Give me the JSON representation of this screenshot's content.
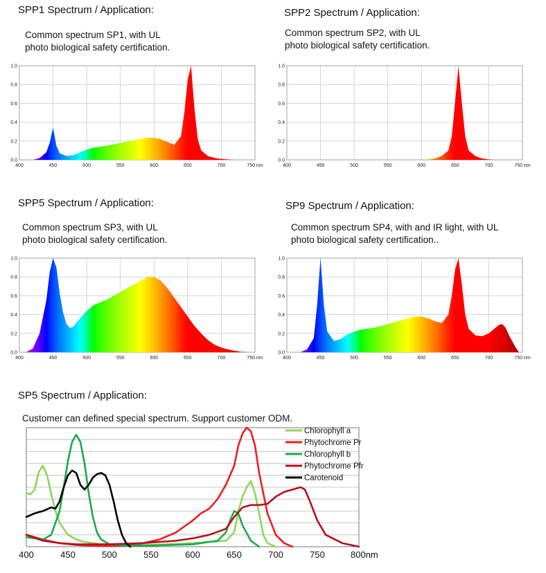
{
  "panels": [
    {
      "heading": "SPP1 Spectrum / Application:",
      "desc": [
        "Common spectrum SP1, with UL",
        "photo biological safety certification."
      ]
    },
    {
      "heading": "SPP2 Spectrum / Application:",
      "desc": [
        "Common spectrum SP2, with UL",
        "photo biological safety certification."
      ]
    },
    {
      "heading": "SPP5 Spectrum / Application:",
      "desc": [
        "Common spectrum SP3, with UL",
        "photo biological safety certification."
      ]
    },
    {
      "heading": "SP9 Spectrum / Application:",
      "desc": [
        "Common spectrum SP4, with and IR light, with UL",
        "photo biological safety certification.."
      ]
    },
    {
      "heading": "SP5 Spectrum / Application:",
      "desc": [
        "Customer can defined special spectrum. Support customer ODM."
      ]
    }
  ],
  "chart_data": [
    {
      "type": "area",
      "xlim": [
        400,
        750
      ],
      "ylim": [
        0,
        1.0
      ],
      "x_ticks": [
        "400",
        "450",
        "500",
        "550",
        "600",
        "650",
        "700",
        "750 nm"
      ],
      "y_ticks": [
        "0.0",
        "0.2",
        "0.4",
        "0.6",
        "0.8",
        "1.0"
      ],
      "grid": true,
      "x": [
        420,
        430,
        440,
        445,
        450,
        455,
        460,
        470,
        480,
        490,
        500,
        510,
        520,
        530,
        540,
        550,
        560,
        570,
        580,
        590,
        600,
        610,
        620,
        630,
        640,
        645,
        650,
        655,
        660,
        665,
        670,
        680,
        690,
        700,
        710,
        720,
        740
      ],
      "values": [
        0.0,
        0.02,
        0.08,
        0.18,
        0.34,
        0.15,
        0.07,
        0.04,
        0.05,
        0.08,
        0.11,
        0.13,
        0.14,
        0.15,
        0.165,
        0.18,
        0.195,
        0.21,
        0.225,
        0.235,
        0.235,
        0.22,
        0.19,
        0.16,
        0.25,
        0.5,
        0.85,
        1.0,
        0.55,
        0.22,
        0.1,
        0.04,
        0.02,
        0.01,
        0.005,
        0.0,
        0.0
      ]
    },
    {
      "type": "area",
      "xlim": [
        400,
        750
      ],
      "ylim": [
        0,
        1.0
      ],
      "x_ticks": [
        "400",
        "450",
        "500",
        "550",
        "600",
        "650",
        "700",
        "750 nm"
      ],
      "y_ticks": [
        "0.0",
        "0.2",
        "0.4",
        "0.6",
        "0.8",
        "1.0"
      ],
      "grid": true,
      "x": [
        600,
        610,
        620,
        630,
        640,
        645,
        650,
        655,
        660,
        665,
        670,
        680,
        690,
        700,
        710
      ],
      "values": [
        0.0,
        0.005,
        0.015,
        0.04,
        0.1,
        0.25,
        0.62,
        1.0,
        0.6,
        0.25,
        0.1,
        0.04,
        0.015,
        0.005,
        0.0
      ]
    },
    {
      "type": "area",
      "xlim": [
        400,
        750
      ],
      "ylim": [
        0,
        1.0
      ],
      "x_ticks": [
        "400",
        "450",
        "500",
        "550",
        "600",
        "650",
        "700",
        "750 nm"
      ],
      "y_ticks": [
        "0.0",
        "0.2",
        "0.4",
        "0.6",
        "0.8",
        "1.0"
      ],
      "grid": true,
      "x": [
        410,
        420,
        430,
        440,
        445,
        450,
        455,
        460,
        465,
        470,
        475,
        480,
        490,
        500,
        510,
        520,
        530,
        540,
        550,
        560,
        570,
        580,
        590,
        600,
        610,
        620,
        630,
        640,
        650,
        660,
        670,
        680,
        690,
        700,
        710,
        720,
        730,
        740
      ],
      "values": [
        0.0,
        0.04,
        0.2,
        0.55,
        0.85,
        1.0,
        0.9,
        0.62,
        0.42,
        0.3,
        0.26,
        0.27,
        0.36,
        0.44,
        0.5,
        0.53,
        0.56,
        0.6,
        0.64,
        0.68,
        0.72,
        0.76,
        0.8,
        0.8,
        0.76,
        0.68,
        0.58,
        0.48,
        0.38,
        0.28,
        0.2,
        0.13,
        0.08,
        0.05,
        0.03,
        0.015,
        0.005,
        0.0
      ]
    },
    {
      "type": "area",
      "xlim": [
        400,
        750
      ],
      "ylim": [
        0,
        1.0
      ],
      "x_ticks": [
        "400",
        "450",
        "500",
        "550",
        "600",
        "650",
        "700",
        "750 nm"
      ],
      "y_ticks": [
        "0.0",
        "0.2",
        "0.4",
        "0.6",
        "0.8",
        "1.0"
      ],
      "grid": true,
      "x": [
        420,
        430,
        440,
        445,
        450,
        455,
        460,
        470,
        480,
        490,
        500,
        510,
        520,
        530,
        540,
        550,
        560,
        570,
        580,
        590,
        600,
        610,
        620,
        630,
        640,
        645,
        650,
        655,
        660,
        665,
        670,
        680,
        690,
        700,
        710,
        715,
        720,
        725,
        730,
        740,
        745
      ],
      "values": [
        0.0,
        0.03,
        0.15,
        0.5,
        1.0,
        0.5,
        0.22,
        0.12,
        0.14,
        0.19,
        0.22,
        0.24,
        0.25,
        0.26,
        0.28,
        0.3,
        0.32,
        0.34,
        0.36,
        0.38,
        0.38,
        0.36,
        0.33,
        0.31,
        0.4,
        0.6,
        0.88,
        1.0,
        0.72,
        0.4,
        0.25,
        0.18,
        0.17,
        0.2,
        0.26,
        0.29,
        0.3,
        0.26,
        0.18,
        0.05,
        0.0
      ]
    },
    {
      "type": "line",
      "xlim": [
        400,
        800
      ],
      "x_ticks": [
        "400",
        "450",
        "500",
        "550",
        "600",
        "650",
        "700",
        "750",
        "800nm"
      ],
      "grid": true,
      "legend": "top-right",
      "series": [
        {
          "name": "Chlorophyll a",
          "color": "#8ed659",
          "x": [
            400,
            405,
            410,
            415,
            420,
            425,
            430,
            435,
            440,
            450,
            460,
            470,
            480,
            490,
            500,
            520,
            550,
            600,
            640,
            650,
            655,
            660,
            665,
            670,
            675,
            680,
            685,
            690,
            700
          ],
          "y": [
            0.45,
            0.44,
            0.48,
            0.63,
            0.68,
            0.6,
            0.44,
            0.3,
            0.2,
            0.1,
            0.06,
            0.04,
            0.03,
            0.02,
            0.02,
            0.015,
            0.015,
            0.03,
            0.05,
            0.12,
            0.3,
            0.42,
            0.5,
            0.55,
            0.45,
            0.28,
            0.1,
            0.03,
            0.0
          ]
        },
        {
          "name": "Phytochrome Pr",
          "color": "#ee1c24",
          "x": [
            400,
            420,
            440,
            460,
            480,
            500,
            520,
            540,
            560,
            580,
            600,
            610,
            620,
            630,
            640,
            650,
            655,
            660,
            665,
            670,
            675,
            680,
            690,
            700,
            710,
            720
          ],
          "y": [
            0.1,
            0.06,
            0.03,
            0.015,
            0.008,
            0.005,
            0.01,
            0.03,
            0.06,
            0.12,
            0.22,
            0.28,
            0.32,
            0.4,
            0.52,
            0.68,
            0.85,
            0.95,
            1.0,
            0.97,
            0.85,
            0.62,
            0.28,
            0.1,
            0.03,
            0.0
          ]
        },
        {
          "name": "Chlorophyll b",
          "color": "#1aaa4a",
          "x": [
            400,
            420,
            430,
            440,
            445,
            450,
            455,
            460,
            465,
            470,
            475,
            480,
            485,
            490,
            500,
            520,
            550,
            600,
            630,
            640,
            645,
            650,
            655,
            660,
            670,
            680
          ],
          "y": [
            0.08,
            0.06,
            0.1,
            0.3,
            0.5,
            0.72,
            0.88,
            0.94,
            0.88,
            0.7,
            0.45,
            0.25,
            0.12,
            0.06,
            0.02,
            0.01,
            0.01,
            0.02,
            0.05,
            0.12,
            0.22,
            0.3,
            0.28,
            0.18,
            0.05,
            0.0
          ]
        },
        {
          "name": "Phytochrome Pfr",
          "color": "#b5101e",
          "x": [
            400,
            420,
            440,
            460,
            480,
            500,
            520,
            540,
            560,
            580,
            600,
            620,
            640,
            650,
            660,
            670,
            680,
            690,
            700,
            710,
            720,
            730,
            735,
            740,
            750,
            760,
            780,
            800
          ],
          "y": [
            0.1,
            0.05,
            0.03,
            0.02,
            0.02,
            0.02,
            0.025,
            0.03,
            0.04,
            0.05,
            0.07,
            0.1,
            0.15,
            0.25,
            0.33,
            0.35,
            0.35,
            0.36,
            0.42,
            0.46,
            0.48,
            0.5,
            0.48,
            0.4,
            0.22,
            0.1,
            0.03,
            0.0
          ]
        },
        {
          "name": "Carotenoid",
          "color": "#000000",
          "x": [
            400,
            410,
            420,
            430,
            435,
            440,
            445,
            450,
            455,
            460,
            465,
            470,
            475,
            480,
            485,
            490,
            495,
            500,
            505,
            510,
            515,
            520,
            525
          ],
          "y": [
            0.25,
            0.28,
            0.3,
            0.33,
            0.32,
            0.38,
            0.5,
            0.6,
            0.64,
            0.62,
            0.52,
            0.48,
            0.52,
            0.58,
            0.61,
            0.62,
            0.6,
            0.52,
            0.38,
            0.22,
            0.1,
            0.03,
            0.0
          ]
        }
      ]
    }
  ]
}
